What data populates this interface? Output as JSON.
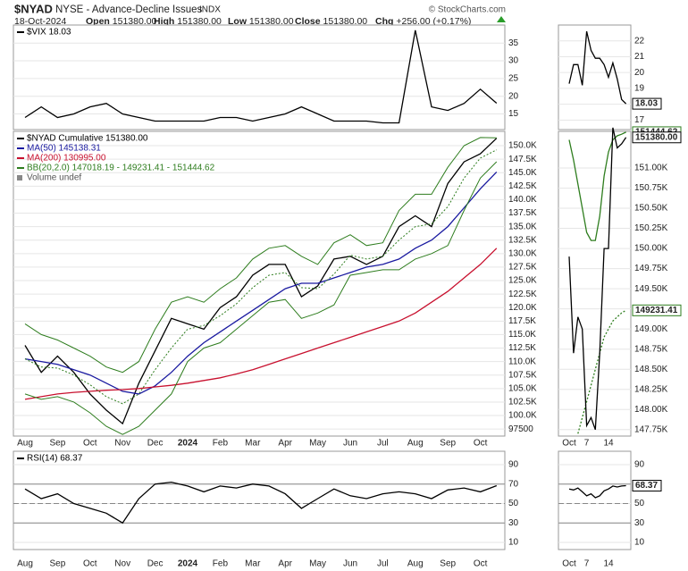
{
  "header": {
    "symbol": "$NYAD",
    "name": "NYSE - Advance-Decline Issues",
    "exchange": "INDX",
    "date": "18-Oct-2024",
    "credit": "© StockCharts.com",
    "fields": [
      {
        "label": "Open",
        "value": "151380.00"
      },
      {
        "label": "High",
        "value": "151380.00"
      },
      {
        "label": "Low",
        "value": "151380.00"
      },
      {
        "label": "Close",
        "value": "151380.00"
      },
      {
        "label": "Chg",
        "value": "+256.00 (+0.17%)"
      }
    ]
  },
  "chart_data": [
    {
      "type": "line",
      "ylim": [
        10.6,
        40.1
      ],
      "yticks": [
        15,
        20,
        25,
        30,
        35
      ],
      "grid": true,
      "legend": "upper left",
      "series": [
        {
          "name": "$VIX 18.03",
          "color": "#000000",
          "values": [
            14,
            17,
            14,
            15,
            17,
            18,
            15,
            14,
            13,
            13,
            13,
            13,
            14,
            14,
            13,
            14,
            15,
            17,
            15,
            13,
            13,
            13,
            12.5,
            12.5,
            38.6,
            17,
            16,
            18,
            22,
            18.03
          ]
        }
      ]
    },
    {
      "type": "line",
      "ylim": [
        96200,
        152650
      ],
      "grid": true,
      "legend": "upper left",
      "legend_extra": "Volume undef",
      "categories": [
        "Aug",
        null,
        "Sep",
        null,
        "Oct",
        null,
        "Nov",
        null,
        "Dec",
        null,
        "2024",
        null,
        "Feb",
        null,
        "Mar",
        null,
        "Apr",
        null,
        "May",
        null,
        "Jun",
        null,
        "Jul",
        null,
        "Aug",
        null,
        "Sep",
        null,
        "Oct",
        null
      ],
      "yticks": [
        97500,
        {
          "value": 100000,
          "label": "100.0K"
        },
        {
          "value": 102500,
          "label": "102.5K"
        },
        {
          "value": 105000,
          "label": "105.0K"
        },
        {
          "value": 107500,
          "label": "107.5K"
        },
        {
          "value": 110000,
          "label": "110.0K"
        },
        {
          "value": 112500,
          "label": "112.5K"
        },
        {
          "value": 115000,
          "label": "115.0K"
        },
        {
          "value": 117500,
          "label": "117.5K"
        },
        {
          "value": 120000,
          "label": "120.0K"
        },
        {
          "value": 122500,
          "label": "122.5K"
        },
        {
          "value": 125000,
          "label": "125.0K"
        },
        {
          "value": 127500,
          "label": "127.5K"
        },
        {
          "value": 130000,
          "label": "130.0K"
        },
        {
          "value": 132500,
          "label": "132.5K"
        },
        {
          "value": 135000,
          "label": "135.0K"
        },
        {
          "value": 137500,
          "label": "137.5K"
        },
        {
          "value": 140000,
          "label": "140.0K"
        },
        {
          "value": 142500,
          "label": "142.5K"
        },
        {
          "value": 145000,
          "label": "145.0K"
        },
        {
          "value": 147500,
          "label": "147.5K"
        },
        {
          "value": 150000,
          "label": "150.0K"
        }
      ],
      "series": [
        {
          "name": "$NYAD Cumulative 151380.00",
          "color": "#000000",
          "values": [
            113000,
            108000,
            111000,
            108000,
            104000,
            101000,
            98500,
            106000,
            112000,
            118000,
            117000,
            116000,
            120000,
            122000,
            126000,
            128000,
            128000,
            122000,
            124000,
            129000,
            129500,
            128000,
            129500,
            135000,
            137000,
            135000,
            143000,
            147000,
            148500,
            151380
          ]
        },
        {
          "name": "MA(50) 145138.31",
          "color": "#1a1aa0",
          "values": [
            110500,
            110000,
            109500,
            108500,
            107500,
            106000,
            104500,
            104000,
            105500,
            108000,
            111000,
            113500,
            115500,
            117500,
            119500,
            121500,
            123500,
            124500,
            124500,
            125500,
            126500,
            127500,
            128000,
            129000,
            131000,
            132500,
            135000,
            138500,
            142000,
            145138.31
          ]
        },
        {
          "name": "MA(200) 130995.00",
          "color": "#c8102e",
          "values": [
            103000,
            103500,
            104000,
            104300,
            104500,
            104700,
            104800,
            105000,
            105300,
            105600,
            106000,
            106500,
            107000,
            107700,
            108500,
            109500,
            110500,
            111500,
            112500,
            113500,
            114500,
            115500,
            116500,
            117500,
            119000,
            121000,
            123000,
            125500,
            128000,
            130995
          ]
        },
        {
          "name": "BB(20,2.0) 147018.19 - 149231.41 - 151444.62",
          "color": "#2e7d1e",
          "values": [
            110500,
            109000,
            108800,
            107500,
            105700,
            103500,
            102200,
            104000,
            108500,
            112500,
            116000,
            116700,
            118500,
            120700,
            123700,
            126000,
            126500,
            123700,
            123500,
            126200,
            129700,
            129000,
            129500,
            132500,
            135000,
            135500,
            138700,
            144000,
            147700,
            149231.41
          ],
          "upper": [
            117000,
            115000,
            114000,
            112500,
            111000,
            109000,
            108000,
            110000,
            116000,
            121000,
            122000,
            121000,
            123500,
            125500,
            129000,
            131000,
            131500,
            129500,
            128000,
            132000,
            133500,
            131500,
            132000,
            138000,
            141000,
            141000,
            146000,
            150000,
            151500,
            151444.62
          ],
          "lower": [
            104000,
            103000,
            103500,
            102500,
            100500,
            98000,
            96500,
            98000,
            101000,
            104000,
            110000,
            112500,
            113500,
            116000,
            118500,
            121000,
            121500,
            118000,
            119000,
            120500,
            126000,
            126500,
            127000,
            127000,
            129000,
            130000,
            131500,
            138000,
            144000,
            147018.19
          ]
        }
      ]
    },
    {
      "type": "line",
      "ylim": [
        2.6,
        103.8
      ],
      "yticks": [
        10,
        30,
        50,
        70,
        90
      ],
      "grid": true,
      "legend": "upper left",
      "reference_lines": [
        30,
        50,
        70
      ],
      "categories": [
        "Aug",
        null,
        "Sep",
        null,
        "Oct",
        null,
        "Nov",
        null,
        "Dec",
        null,
        "2024",
        null,
        "Feb",
        null,
        "Mar",
        null,
        "Apr",
        null,
        "May",
        null,
        "Jun",
        null,
        "Jul",
        null,
        "Aug",
        null,
        "Sep",
        null,
        "Oct",
        null
      ],
      "series": [
        {
          "name": "RSI(14) 68.37",
          "color": "#000000",
          "values": [
            65,
            55,
            60,
            50,
            45,
            40,
            30,
            55,
            70,
            72,
            68,
            62,
            68,
            66,
            70,
            68,
            60,
            45,
            55,
            65,
            58,
            55,
            60,
            62,
            60,
            55,
            64,
            66,
            62,
            68.37
          ]
        }
      ]
    },
    {
      "type": "line",
      "ylim": [
        16.4,
        23
      ],
      "yticks": [
        17,
        18,
        19,
        20,
        21,
        22
      ],
      "grid": true,
      "series": [
        {
          "color": "#000000",
          "values": [
            19.3,
            20.5,
            20.5,
            19.2,
            22.6,
            21.4,
            20.9,
            20.9,
            20.5,
            19.7,
            20.6,
            19.6,
            18.3,
            18.03
          ],
          "last_label": true
        }
      ]
    },
    {
      "type": "line",
      "ylim": [
        147670,
        151455
      ],
      "grid": true,
      "categories": [
        "Oct",
        null,
        null,
        null,
        "7",
        null,
        null,
        null,
        null,
        "14",
        null,
        null,
        null,
        null
      ],
      "yticks": [
        {
          "value": 147750,
          "label": "147.75K"
        },
        {
          "value": 148000,
          "label": "148.00K"
        },
        {
          "value": 148250,
          "label": "148.25K"
        },
        {
          "value": 148500,
          "label": "148.50K"
        },
        {
          "value": 148750,
          "label": "148.75K"
        },
        {
          "value": 149000,
          "label": "149.00K"
        },
        {
          "value": 149250,
          "label": "149.25K"
        },
        {
          "value": 149500,
          "label": "149.50K"
        },
        {
          "value": 149750,
          "label": "149.75K"
        },
        {
          "value": 150000,
          "label": "150.00K"
        },
        {
          "value": 150250,
          "label": "150.25K"
        },
        {
          "value": 150500,
          "label": "150.50K"
        },
        {
          "value": 150750,
          "label": "150.75K"
        },
        {
          "value": 151000,
          "label": "151.00K"
        }
      ],
      "series": [
        {
          "color": "#2e7d1e",
          "values": [
            151350,
            151100,
            150800,
            150500,
            150200,
            150100,
            150100,
            150400,
            150900,
            151200,
            151350,
            151400,
            151420,
            151444.62
          ],
          "value_labels": [
            null,
            null,
            null,
            null,
            null,
            null,
            null,
            null,
            null,
            null,
            null,
            null,
            null,
            "151444.62"
          ]
        },
        {
          "color": "#2e7d1e",
          "dashed": true,
          "values": [
            null,
            null,
            147700,
            147900,
            148100,
            148300,
            148500,
            148700,
            148900,
            149000,
            149100,
            149150,
            149200,
            149231.41
          ],
          "value_labels": [
            null,
            null,
            null,
            null,
            null,
            null,
            null,
            null,
            null,
            null,
            null,
            null,
            null,
            "149231.41"
          ]
        },
        {
          "color": "#000000",
          "values": [
            149900,
            148700,
            149150,
            149000,
            147800,
            147900,
            147750,
            148700,
            150000,
            150000,
            151500,
            151250,
            151300,
            151380
          ],
          "value_labels": [
            null,
            null,
            null,
            null,
            null,
            null,
            null,
            null,
            null,
            null,
            null,
            null,
            null,
            "151380.00"
          ]
        }
      ]
    },
    {
      "type": "line",
      "ylim": [
        2.6,
        103.8
      ],
      "yticks": [
        10,
        30,
        50,
        70,
        90
      ],
      "grid": true,
      "reference_lines": [
        30,
        50,
        70
      ],
      "categories": [
        "Oct",
        null,
        null,
        null,
        "7",
        null,
        null,
        null,
        null,
        "14",
        null,
        null,
        null,
        null
      ],
      "series": [
        {
          "color": "#000000",
          "values": [
            65,
            64,
            66,
            62,
            58,
            60,
            56,
            58,
            63,
            65,
            68,
            67,
            68,
            68.37
          ],
          "last_label": true
        }
      ]
    }
  ]
}
